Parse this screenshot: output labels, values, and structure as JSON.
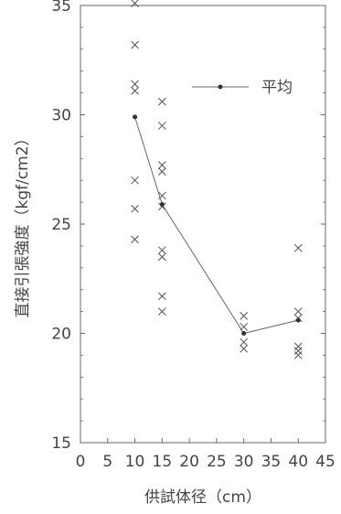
{
  "chart_data": {
    "type": "scatter",
    "title": "",
    "xlabel": "供試体径（cm）",
    "ylabel": "直接引張強度（kgf/cm2）",
    "xlim": [
      0,
      45
    ],
    "ylim": [
      15,
      35
    ],
    "xticks": [
      "0",
      "5",
      "10",
      "15",
      "20",
      "25",
      "30",
      "35",
      "40",
      "45"
    ],
    "yticks": [
      "15",
      "20",
      "25",
      "30",
      "35"
    ],
    "grid": false,
    "legend_position": "top-right",
    "series": [
      {
        "name": "",
        "marker": "x",
        "points": [
          [
            10,
            35.1
          ],
          [
            10,
            33.2
          ],
          [
            10,
            31.4
          ],
          [
            10,
            31.1
          ],
          [
            10,
            27.0
          ],
          [
            10,
            25.7
          ],
          [
            10,
            24.3
          ],
          [
            15,
            30.6
          ],
          [
            15,
            29.5
          ],
          [
            15,
            27.7
          ],
          [
            15,
            27.4
          ],
          [
            15,
            26.3
          ],
          [
            15,
            25.8
          ],
          [
            15,
            23.8
          ],
          [
            15,
            23.5
          ],
          [
            15,
            21.7
          ],
          [
            15,
            21.0
          ],
          [
            30,
            20.8
          ],
          [
            30,
            20.3
          ],
          [
            30,
            19.6
          ],
          [
            30,
            19.3
          ],
          [
            40,
            23.9
          ],
          [
            40,
            21.0
          ],
          [
            40,
            20.7
          ],
          [
            40,
            19.4
          ],
          [
            40,
            19.2
          ],
          [
            40,
            19.0
          ]
        ]
      },
      {
        "name": "平均",
        "marker": "dot-line",
        "points": [
          [
            10,
            29.9
          ],
          [
            15,
            25.9
          ],
          [
            30,
            20.0
          ],
          [
            40,
            20.6
          ]
        ]
      }
    ]
  }
}
